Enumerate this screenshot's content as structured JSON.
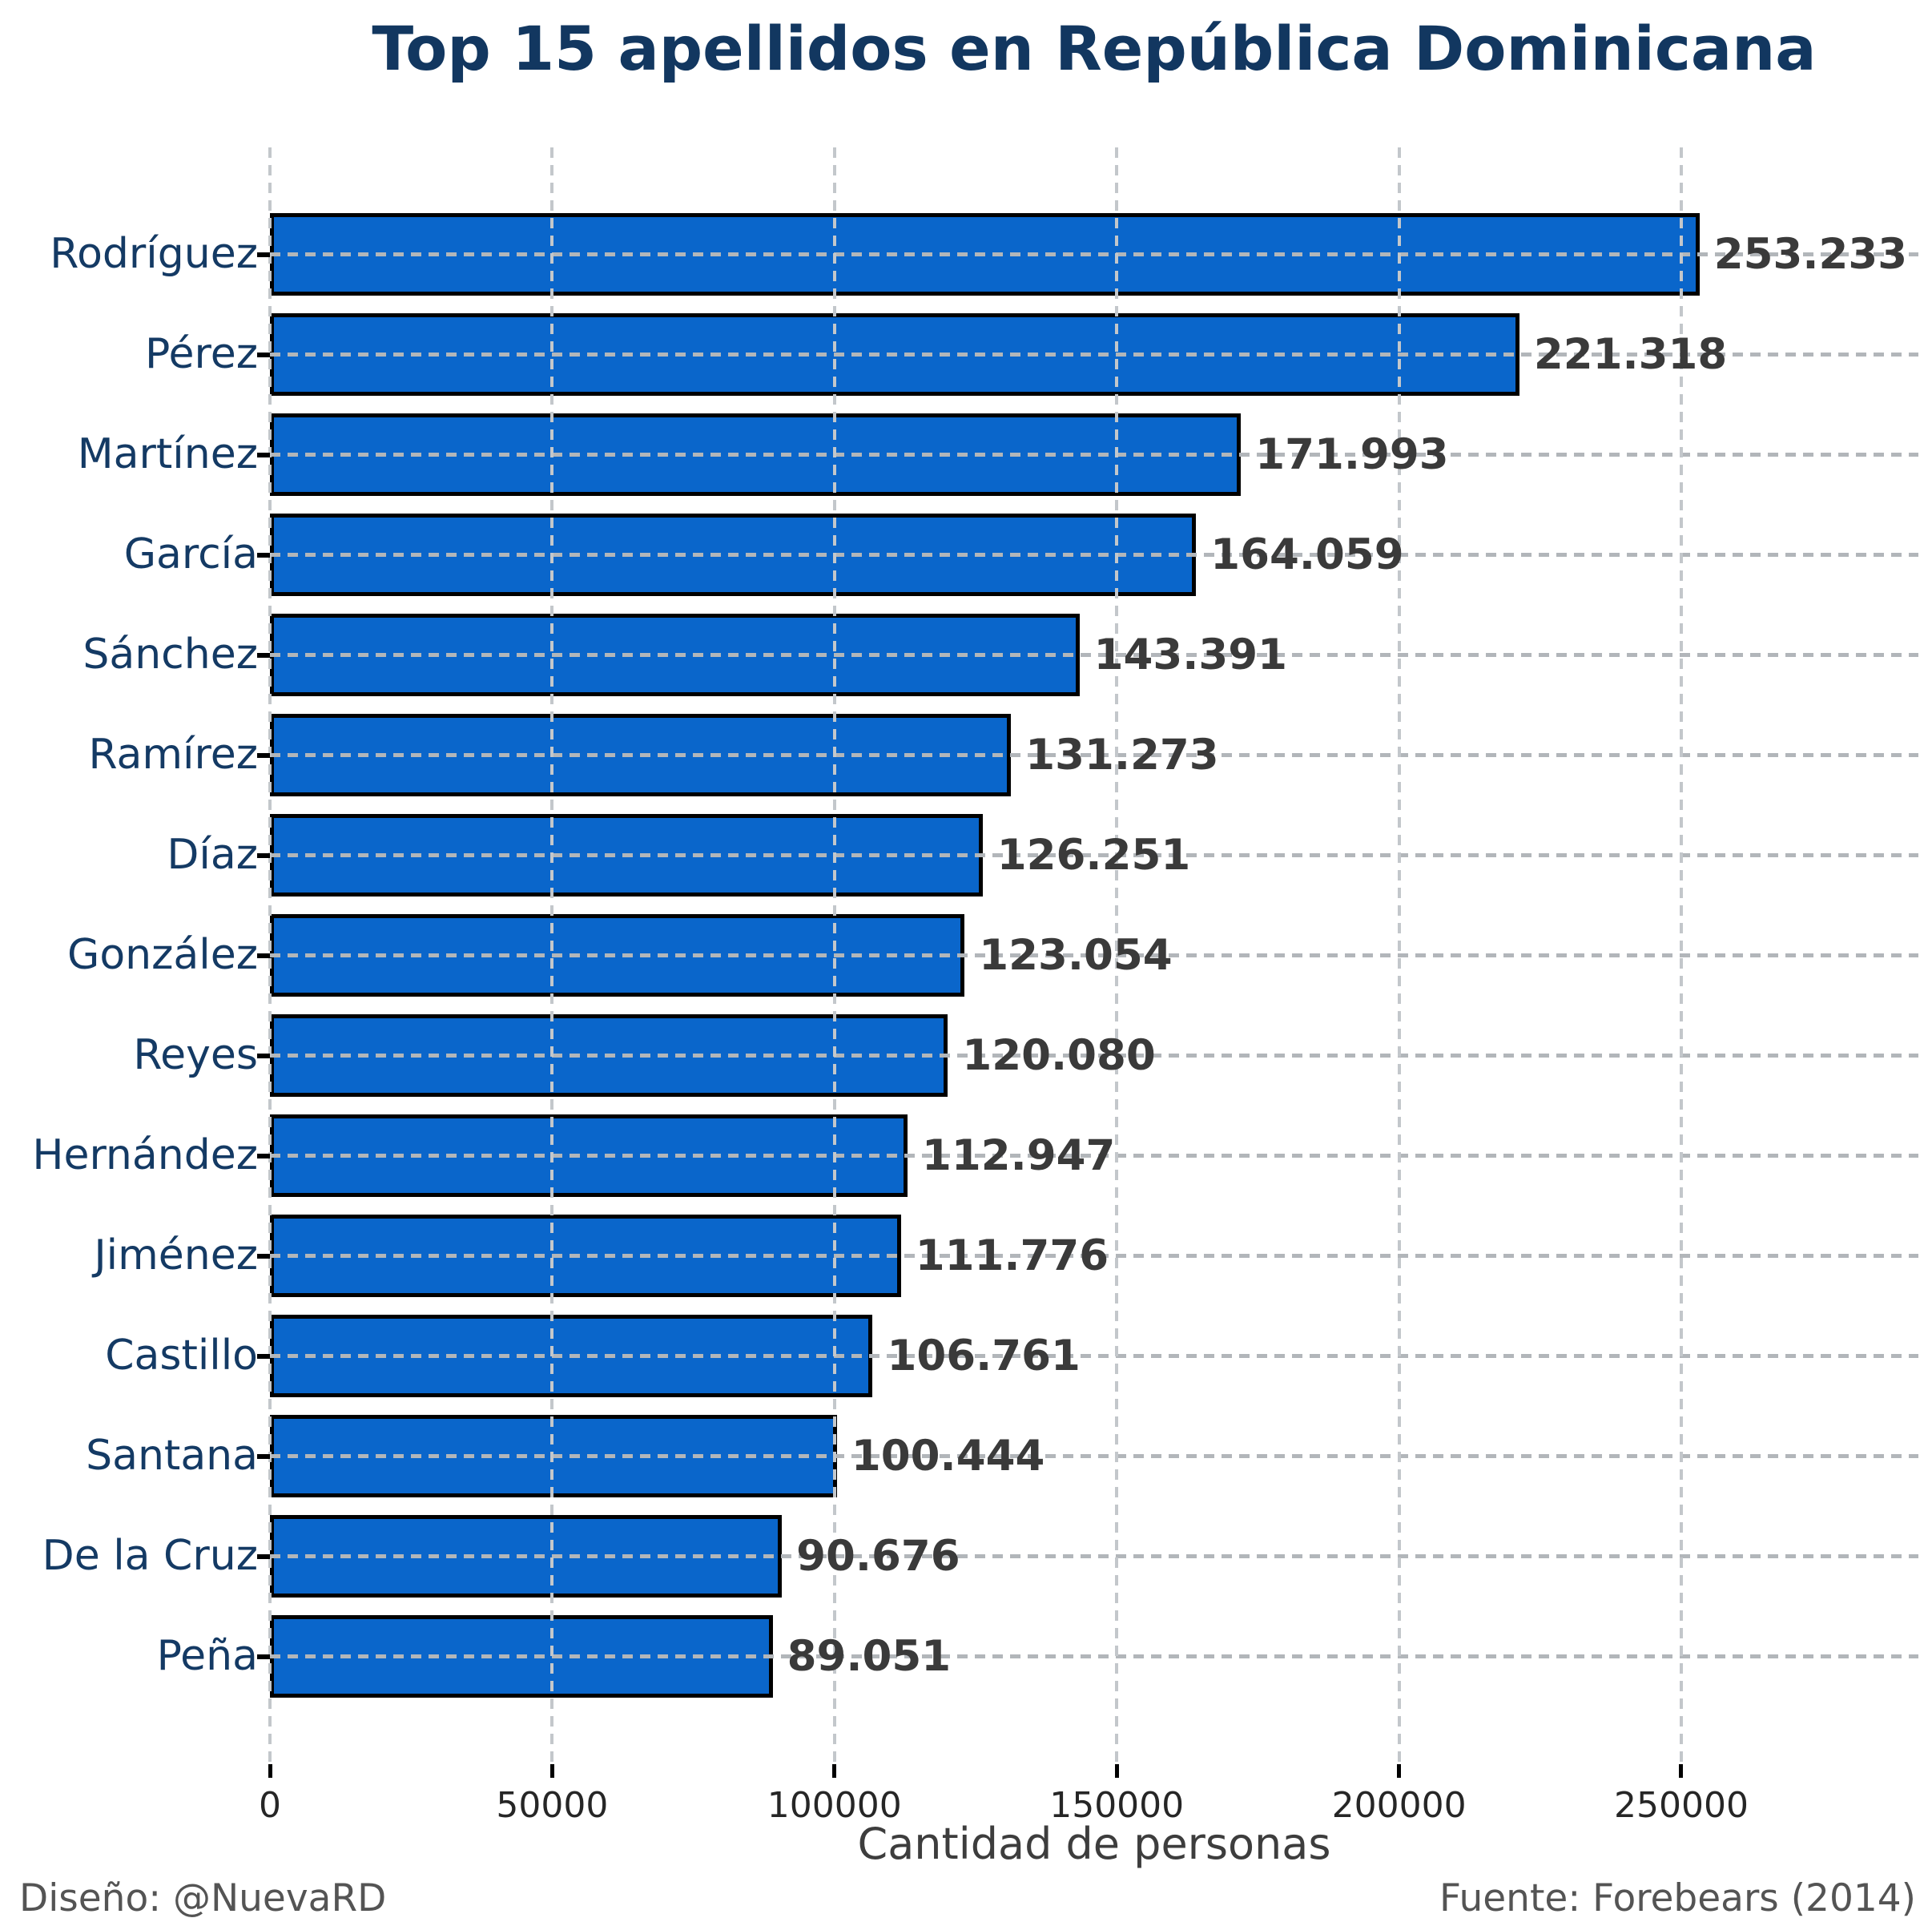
{
  "footer": {
    "designer": "Diseño: @NuevaRD",
    "source": "Fuente: Forebears (2014)"
  },
  "chart_data": {
    "type": "bar",
    "orientation": "horizontal",
    "title": "Top 15 apellidos en República Dominicana",
    "xlabel": "Cantidad de personas",
    "ylabel": "",
    "categories": [
      "Rodríguez",
      "Pérez",
      "Martínez",
      "García",
      "Sánchez",
      "Ramírez",
      "Díaz",
      "González",
      "Reyes",
      "Hernández",
      "Jiménez",
      "Castillo",
      "Santana",
      "De la Cruz",
      "Peña"
    ],
    "values": [
      253233,
      221318,
      171993,
      164059,
      143391,
      131273,
      126251,
      123054,
      120080,
      112947,
      111776,
      106761,
      100444,
      90676,
      89051
    ],
    "value_labels": [
      "253.233",
      "221.318",
      "171.993",
      "164.059",
      "143.391",
      "131.273",
      "126.251",
      "123.054",
      "120.080",
      "112.947",
      "111.776",
      "106.761",
      "100.444",
      "90.676",
      "89.051"
    ],
    "xticks": [
      0,
      50000,
      100000,
      150000,
      200000,
      250000
    ],
    "xtick_labels": [
      "0",
      "50000",
      "100000",
      "150000",
      "200000",
      "250000"
    ],
    "xlim": [
      0,
      292000
    ],
    "grid": "dashed",
    "legend": "none",
    "colors": {
      "background": "#ffffff",
      "bar_fill": "#0a66cb",
      "bar_border": "#000000",
      "title": "#123760",
      "category_label": "#143a64",
      "value_label": "#3a3a3a",
      "tick_label": "#262626",
      "axis_label": "#3d3d3d",
      "footer": "#545454",
      "gridline_vertical": "#c3c7cb",
      "gridline_horizontal": "#b2b6ba"
    }
  }
}
